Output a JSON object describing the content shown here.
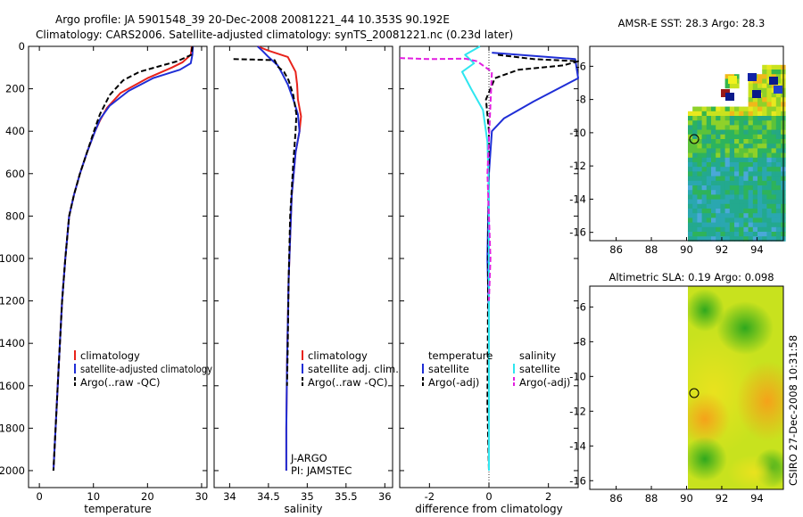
{
  "title_line1": "Argo profile: JA 5901548_39 20-Dec-2008 20081221_44 10.353S 90.192E",
  "title_line2": "Climatology: CARS2006. Satellite-adjusted climatology: synTS_20081221.nc (0.23d later)",
  "side_label": "CSIRO 27-Dec-2008 10:31:58",
  "colors": {
    "red": "#e8231b",
    "blue": "#1f2ed6",
    "black": "#000000",
    "cyan": "#2fe6f0",
    "magenta": "#e21ee0"
  },
  "chart_data": [
    {
      "type": "line",
      "name": "temperature-panel",
      "xlabel": "temperature",
      "ylabel": "",
      "xlim": [
        -2,
        31
      ],
      "ylim": [
        0,
        2080
      ],
      "y_inverted": true,
      "xticks": [
        "0",
        "10",
        "20",
        "30"
      ],
      "xtick_values": [
        0,
        10,
        20,
        30
      ],
      "yticks": [
        "0",
        "200",
        "400",
        "600",
        "800",
        "1000",
        "1200",
        "1400",
        "1600",
        "1800",
        "2000"
      ],
      "ytick_values": [
        0,
        200,
        400,
        600,
        800,
        1000,
        1200,
        1400,
        1600,
        1800,
        2000
      ],
      "legend": [
        "climatology",
        "satellite-adjusted climatology",
        "Argo(..raw -QC)"
      ],
      "series": [
        {
          "name": "climatology",
          "color": "red",
          "style": "solid",
          "x": [
            28.2,
            28.0,
            26.5,
            24.5,
            20.0,
            15.0,
            12.5,
            11.2,
            10.3,
            8.8,
            7.5,
            6.4,
            5.5,
            4.8,
            4.2,
            3.6,
            3.0,
            2.6
          ],
          "y": [
            0,
            40,
            75,
            100,
            150,
            220,
            290,
            350,
            400,
            500,
            600,
            700,
            800,
            1000,
            1200,
            1500,
            1800,
            2000
          ]
        },
        {
          "name": "satellite-adjusted climatology",
          "color": "blue",
          "style": "solid",
          "x": [
            28.4,
            28.3,
            28.0,
            26.0,
            21.0,
            16.5,
            13.0,
            11.3,
            10.3,
            8.8,
            7.5,
            6.4,
            5.5,
            4.8,
            4.2,
            3.6,
            3.0,
            2.6
          ],
          "y": [
            0,
            40,
            80,
            110,
            150,
            210,
            280,
            340,
            400,
            500,
            600,
            700,
            800,
            1000,
            1200,
            1500,
            1800,
            2000
          ]
        },
        {
          "name": "Argo(..raw -QC)",
          "color": "black",
          "style": "dashed",
          "x": [
            28.3,
            28.1,
            25.5,
            22.0,
            18.5,
            15.5,
            13.0,
            11.2,
            10.1,
            8.8,
            7.5,
            6.4,
            5.5,
            4.8,
            4.2,
            3.6,
            3.0,
            2.6
          ],
          "y": [
            0,
            40,
            70,
            95,
            120,
            160,
            230,
            320,
            400,
            500,
            600,
            700,
            800,
            1000,
            1200,
            1500,
            1800,
            2000
          ]
        }
      ]
    },
    {
      "type": "line",
      "name": "salinity-panel",
      "xlabel": "salinity",
      "xlim": [
        33.8,
        36.1
      ],
      "ylim": [
        0,
        2080
      ],
      "y_inverted": true,
      "xticks": [
        "34",
        "34.5",
        "35",
        "35.5",
        "36"
      ],
      "xtick_values": [
        34,
        34.5,
        35,
        35.5,
        36
      ],
      "legend": [
        "climatology",
        "satellite adj. clim.",
        "Argo(..raw -QC)"
      ],
      "annotations": [
        "J-ARGO",
        "PI: JAMSTEC"
      ],
      "series": [
        {
          "name": "climatology",
          "color": "red",
          "style": "solid",
          "x": [
            34.36,
            34.5,
            34.75,
            34.85,
            34.87,
            34.88,
            34.92,
            34.9,
            34.85,
            34.8,
            34.78,
            34.76,
            34.75,
            34.74,
            34.73,
            34.73
          ],
          "y": [
            0,
            20,
            50,
            120,
            180,
            250,
            330,
            400,
            500,
            700,
            900,
            1100,
            1300,
            1500,
            1800,
            2000
          ]
        },
        {
          "name": "satellite adj. clim.",
          "color": "blue",
          "style": "solid",
          "x": [
            34.36,
            34.42,
            34.5,
            34.62,
            34.68,
            34.75,
            34.82,
            34.88,
            34.9,
            34.85,
            34.8,
            34.78,
            34.76,
            34.75,
            34.74,
            34.73,
            34.73
          ],
          "y": [
            0,
            20,
            50,
            90,
            130,
            180,
            250,
            320,
            400,
            500,
            700,
            900,
            1100,
            1300,
            1500,
            1800,
            2000
          ]
        },
        {
          "name": "Argo(..raw -QC)",
          "color": "black",
          "style": "dashed",
          "x": [
            34.05,
            34.3,
            34.58,
            34.62,
            34.7,
            34.76,
            34.82,
            34.86,
            34.85,
            34.82,
            34.78,
            34.76,
            34.75,
            34.74
          ],
          "y": [
            60,
            62,
            65,
            95,
            120,
            160,
            230,
            320,
            400,
            550,
            800,
            1100,
            1400,
            1600
          ]
        }
      ]
    },
    {
      "type": "line",
      "name": "difference-panel",
      "xlabel": "difference from climatology",
      "xlim": [
        -3,
        3
      ],
      "ylim": [
        0,
        2080
      ],
      "y_inverted": true,
      "xticks": [
        "-2",
        "0",
        "2"
      ],
      "xtick_values": [
        -2,
        0,
        2
      ],
      "legend_temperature": [
        "temperature",
        "satellite",
        "Argo(-adj)"
      ],
      "legend_salinity": [
        "salinity",
        "satellite",
        "Argo(-adj)"
      ],
      "series": [
        {
          "name": "temperature satellite",
          "color": "blue",
          "style": "solid",
          "x": [
            0.1,
            2.9,
            3.0,
            1.5,
            0.5,
            0.1,
            0.0,
            -0.05,
            0.0,
            0.0,
            0.0
          ],
          "y": [
            30,
            60,
            150,
            260,
            340,
            400,
            600,
            1000,
            1300,
            1600,
            2000
          ]
        },
        {
          "name": "temperature Argo(-adj)",
          "color": "black",
          "style": "dashed",
          "x": [
            0.3,
            1.5,
            3.0,
            2.5,
            1.0,
            0.2,
            -0.1,
            0.0,
            -0.05,
            0.0
          ],
          "y": [
            40,
            60,
            70,
            90,
            110,
            150,
            250,
            400,
            1700,
            2000
          ]
        },
        {
          "name": "salinity satellite",
          "color": "cyan",
          "style": "solid",
          "x": [
            -0.3,
            -0.8,
            -0.5,
            -0.9,
            -0.6,
            -0.2,
            -0.05,
            0.0,
            0.0,
            0.0
          ],
          "y": [
            0,
            40,
            80,
            120,
            200,
            300,
            450,
            700,
            1000,
            2000
          ]
        },
        {
          "name": "salinity Argo(-adj)",
          "color": "magenta",
          "style": "dashed",
          "x": [
            -3.0,
            -2.0,
            -0.8,
            -0.4,
            0.1,
            -0.05,
            0.05,
            0.0
          ],
          "y": [
            55,
            60,
            58,
            70,
            120,
            600,
            1000,
            1200
          ]
        }
      ]
    },
    {
      "type": "heatmap",
      "name": "sst-map",
      "title": "AMSR-E SST: 28.3 Argo: 28.3",
      "xlim": [
        84.5,
        95.5
      ],
      "ylim": [
        -16.5,
        -4.8
      ],
      "xticks": [
        "86",
        "88",
        "90",
        "92",
        "94"
      ],
      "xtick_values": [
        86,
        88,
        90,
        92,
        94
      ],
      "yticks": [
        "-6",
        "-8",
        "-10",
        "-12",
        "-14",
        "-16"
      ],
      "ytick_values": [
        -6,
        -8,
        -10,
        -12,
        -14,
        -16
      ],
      "marker": {
        "lon": 90.2,
        "lat": -10.35
      }
    },
    {
      "type": "heatmap",
      "name": "sla-map",
      "title": "Altimetric SLA: 0.19 Argo: 0.098",
      "xlim": [
        84.5,
        95.5
      ],
      "ylim": [
        -16.5,
        -4.8
      ],
      "xticks": [
        "86",
        "88",
        "90",
        "92",
        "94"
      ],
      "xtick_values": [
        86,
        88,
        90,
        92,
        94
      ],
      "yticks": [
        "-6",
        "-8",
        "-10",
        "-12",
        "-14",
        "-16"
      ],
      "ytick_values": [
        -6,
        -8,
        -10,
        -12,
        -14,
        -16
      ],
      "marker": {
        "lon": 90.2,
        "lat": -10.35
      }
    }
  ]
}
